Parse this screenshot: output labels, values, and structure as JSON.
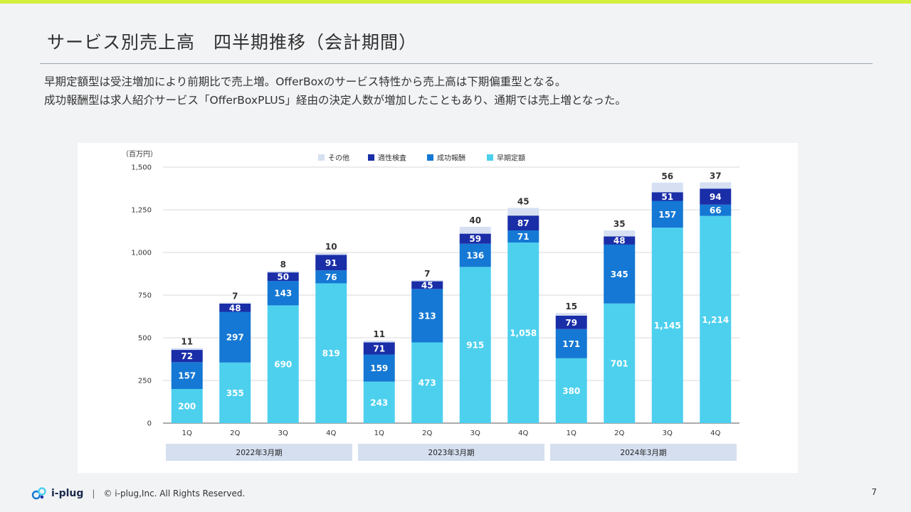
{
  "title": "サービス別売上高　四半期推移（会計期間）",
  "description": [
    "早期定額型は受注増加により前期比で売上増。OfferBoxのサービス特性から売上高は下期偏重型となる。",
    "成功報酬型は求人紹介サービス「OfferBoxPLUS」経由の決定人数が増加したこともあり、通期では売上増となった。"
  ],
  "footer": {
    "logo": "i-plug",
    "separator": "|",
    "copyright": "© i-plug,Inc. All Rights Reserved.",
    "page": "7"
  },
  "colors": {
    "early_fixed": "#4dd0ee",
    "success_fee": "#1478d4",
    "aptitude": "#1a2ea8",
    "other": "#d6e0f2",
    "period_band": "#d5dff0",
    "top_bar": "#d4f03c"
  },
  "chart_data": {
    "type": "bar",
    "stacked": true,
    "unit_label": "（百万円）",
    "ylim": [
      0,
      1500
    ],
    "yticks": [
      0,
      250,
      500,
      750,
      1000,
      1250,
      1500
    ],
    "ytick_labels": [
      "0",
      "250",
      "500",
      "750",
      "1,000",
      "1,250",
      "1,500"
    ],
    "categories": [
      "1Q",
      "2Q",
      "3Q",
      "4Q",
      "1Q",
      "2Q",
      "3Q",
      "4Q",
      "1Q",
      "2Q",
      "3Q",
      "4Q"
    ],
    "periods": [
      {
        "label": "2022年3月期",
        "span": 4
      },
      {
        "label": "2023年3月期",
        "span": 4
      },
      {
        "label": "2024年3月期",
        "span": 4
      }
    ],
    "legend": [
      "その他",
      "適性検査",
      "成功報酬",
      "早期定額"
    ],
    "series": [
      {
        "name": "早期定額",
        "color": "#4dd0ee",
        "values": [
          200,
          355,
          690,
          819,
          243,
          473,
          915,
          1058,
          380,
          701,
          1145,
          1214
        ]
      },
      {
        "name": "成功報酬",
        "color": "#1478d4",
        "values": [
          157,
          297,
          143,
          76,
          159,
          313,
          136,
          71,
          171,
          345,
          157,
          66
        ]
      },
      {
        "name": "適性検査",
        "color": "#1a2ea8",
        "values": [
          72,
          48,
          50,
          91,
          71,
          45,
          59,
          87,
          79,
          48,
          51,
          94
        ]
      },
      {
        "name": "その他",
        "color": "#d6e0f2",
        "values": [
          11,
          7,
          8,
          10,
          11,
          7,
          40,
          45,
          15,
          35,
          56,
          37
        ]
      }
    ]
  }
}
